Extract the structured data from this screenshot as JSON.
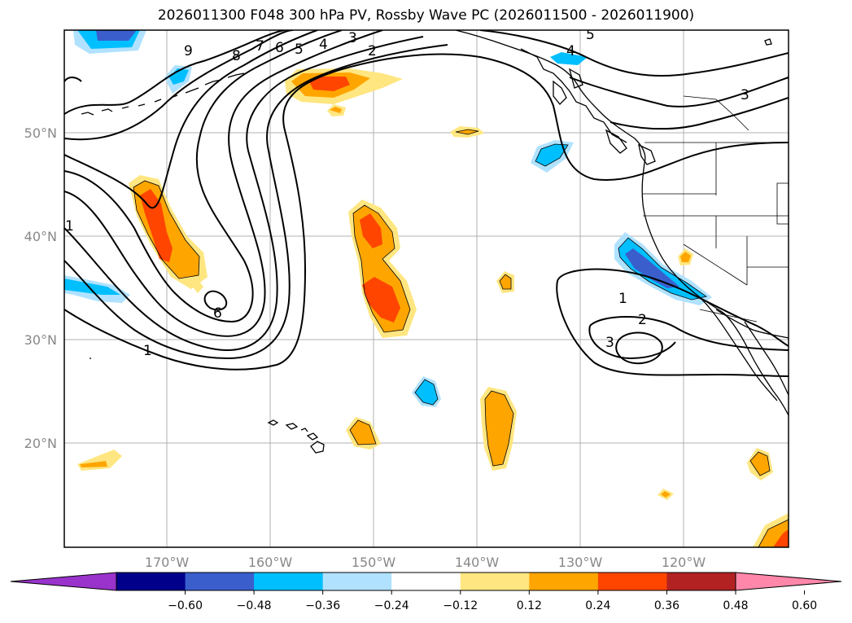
{
  "title": "2026011300 F048 300 hPa PV, Rossby Wave PC (2026011500 - 2026011900)",
  "map": {
    "lat_labels": [
      "50°N",
      "40°N",
      "30°N",
      "20°N"
    ],
    "lon_labels": [
      "170°W",
      "160°W",
      "150°W",
      "140°W",
      "130°W",
      "120°W"
    ],
    "extent": {
      "lon_min": -180,
      "lon_max": -110,
      "lat_min": 10,
      "lat_max": 60
    },
    "contour_labels": [
      "9",
      "8",
      "7",
      "6",
      "5",
      "4",
      "3",
      "2",
      "5",
      "4",
      "3",
      "1",
      "6",
      "1",
      "1",
      "2",
      "3"
    ]
  },
  "colorbar": {
    "ticks": [
      "−0.60",
      "−0.48",
      "−0.36",
      "−0.24",
      "−0.12",
      "0.12",
      "0.24",
      "0.36",
      "0.48",
      "0.60"
    ],
    "colors": [
      "#9933cc",
      "#00008b",
      "#3a5fcd",
      "#00bfff",
      "#b0e2ff",
      "#ffffff",
      "#ffe680",
      "#ffa500",
      "#ff4500",
      "#b22222",
      "#ff88aa"
    ]
  }
}
